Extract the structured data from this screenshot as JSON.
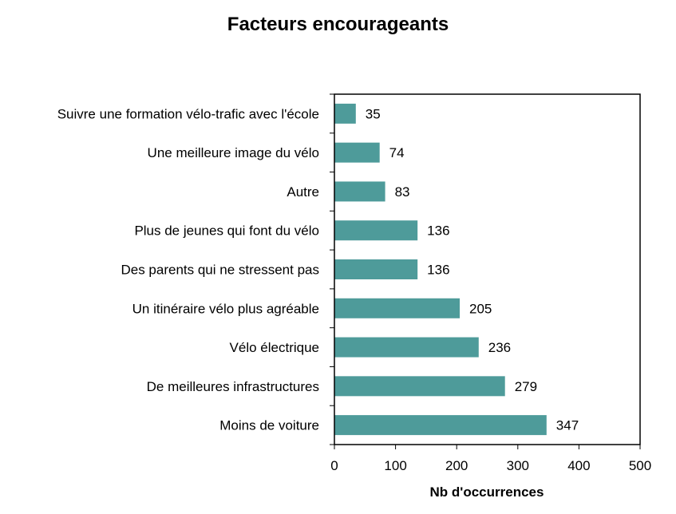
{
  "chart_data": {
    "type": "bar",
    "orientation": "horizontal",
    "title": "Facteurs encourageants",
    "xlabel": "Nb d'occurrences",
    "ylabel": "",
    "categories": [
      "Suivre une formation vélo-trafic avec l'école",
      "Une meilleure image du vélo",
      "Autre",
      "Plus de jeunes qui font du vélo",
      "Des parents qui ne stressent pas",
      "Un itinéraire vélo plus agréable",
      "Vélo électrique",
      "De meilleures infrastructures",
      "Moins de voiture"
    ],
    "values": [
      35,
      74,
      83,
      136,
      136,
      205,
      236,
      279,
      347
    ],
    "xlim": [
      0,
      500
    ],
    "xticks": [
      "0",
      "100",
      "200",
      "300",
      "400",
      "500"
    ],
    "bar_color": "#4e9b9a",
    "grid": false,
    "data_labels": true
  }
}
